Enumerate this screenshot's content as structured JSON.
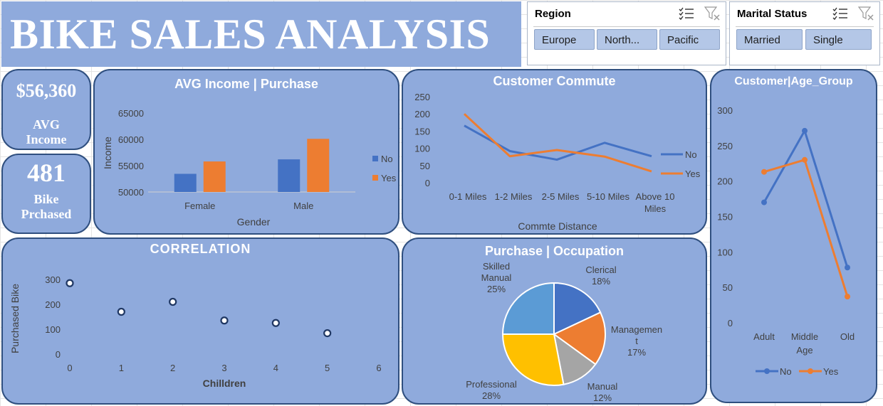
{
  "dashboard": {
    "title": "BIKE SALES ANALYSIS"
  },
  "slicers": {
    "region": {
      "label": "Region",
      "items": [
        "Europe",
        "North...",
        "Pacific"
      ]
    },
    "marital_status": {
      "label": "Marital Status",
      "items": [
        "Married",
        "Single"
      ]
    }
  },
  "kpis": {
    "avg_income": {
      "value": "$56,360",
      "label_line1": "AVG",
      "label_line2": "Income"
    },
    "bikes_purchased": {
      "value": "481",
      "label_line1": "Bike",
      "label_line2": "Prchased"
    }
  },
  "colors": {
    "panel": "#8faadc",
    "panel_border": "#2f4f7f",
    "no": "#4472c4",
    "yes": "#ed7d31"
  },
  "chart_data": [
    {
      "id": "avg_income",
      "type": "bar",
      "title": "AVG  Income | Purchase",
      "xlabel": "Gender",
      "ylabel": "Income",
      "categories": [
        "Female",
        "Male"
      ],
      "series": [
        {
          "name": "No",
          "color": "#4472c4",
          "values": [
            53450,
            56200
          ]
        },
        {
          "name": "Yes",
          "color": "#ed7d31",
          "values": [
            55800,
            60100
          ]
        }
      ],
      "ylim": [
        50000,
        65000
      ],
      "yticks": [
        50000,
        55000,
        60000,
        65000
      ],
      "ytick_labels": [
        "50000",
        "55000",
        "60000",
        "65000"
      ],
      "legend": "right"
    },
    {
      "id": "commute",
      "type": "line",
      "title": "Customer Commute",
      "xlabel": "Commte Distance",
      "categories": [
        "0-1 Miles",
        "1-2 Miles",
        "2-5 Miles",
        "5-10 Miles",
        "Above 10 Miles"
      ],
      "category_labels": [
        [
          "0-1 Miles"
        ],
        [
          "1-2 Miles"
        ],
        [
          "2-5 Miles"
        ],
        [
          "5-10 Miles"
        ],
        [
          "Above 10",
          "Miles"
        ]
      ],
      "series": [
        {
          "name": "No",
          "color": "#4472c4",
          "values": [
            166,
            92,
            67,
            116,
            77
          ]
        },
        {
          "name": "Yes",
          "color": "#ed7d31",
          "values": [
            200,
            77,
            95,
            76,
            33
          ]
        }
      ],
      "ylim": [
        0,
        250
      ],
      "yticks": [
        0,
        50,
        100,
        150,
        200,
        250
      ],
      "ytick_labels": [
        "0",
        "50",
        "100",
        "150",
        "200",
        "250"
      ],
      "legend": "right"
    },
    {
      "id": "age_group",
      "type": "line",
      "title": "Customer|Age_Group",
      "categories": [
        "Adult",
        "Middle Age",
        "Old"
      ],
      "category_labels": [
        [
          "Adult"
        ],
        [
          "Middle",
          "Age"
        ],
        [
          "Old"
        ]
      ],
      "series": [
        {
          "name": "No",
          "color": "#4472c4",
          "values": [
            170,
            271,
            78
          ]
        },
        {
          "name": "Yes",
          "color": "#ed7d31",
          "values": [
            213,
            230,
            37
          ]
        }
      ],
      "ylim": [
        0,
        300
      ],
      "yticks": [
        0,
        50,
        100,
        150,
        200,
        250,
        300
      ],
      "ytick_labels": [
        "0",
        "50",
        "100",
        "150",
        "200",
        "250",
        "300"
      ],
      "legend": "bottom",
      "markers": true
    },
    {
      "id": "correlation",
      "type": "scatter",
      "title": "CORRELATION",
      "xlabel": "Chilldren",
      "ylabel": "Purchased Bike",
      "points": [
        {
          "x": 0,
          "y": 285
        },
        {
          "x": 1,
          "y": 170
        },
        {
          "x": 2,
          "y": 210
        },
        {
          "x": 3,
          "y": 135
        },
        {
          "x": 4,
          "y": 125
        },
        {
          "x": 5,
          "y": 84
        }
      ],
      "xlim": [
        0,
        6
      ],
      "ylim": [
        0,
        300
      ],
      "xticks": [
        0,
        1,
        2,
        3,
        4,
        5,
        6
      ],
      "xtick_labels": [
        "0",
        "1",
        "2",
        "3",
        "4",
        "5",
        "6"
      ],
      "yticks": [
        0,
        100,
        200,
        300
      ],
      "ytick_labels": [
        "0",
        "100",
        "200",
        "300"
      ]
    },
    {
      "id": "occupation",
      "type": "pie",
      "title": "Purchase | Occupation",
      "slices": [
        {
          "name": "Clerical",
          "value": 18,
          "label": [
            "Clerical",
            "18%"
          ],
          "color": "#4472c4"
        },
        {
          "name": "Management",
          "value": 17,
          "label": [
            "Managemen",
            "t",
            "17%"
          ],
          "color": "#ed7d31"
        },
        {
          "name": "Manual",
          "value": 12,
          "label": [
            "Manual",
            "12%"
          ],
          "color": "#a5a5a5"
        },
        {
          "name": "Professional",
          "value": 28,
          "label": [
            "Professional",
            "28%"
          ],
          "color": "#ffc000"
        },
        {
          "name": "Skilled Manual",
          "value": 25,
          "label": [
            "Skilled",
            "Manual",
            "25%"
          ],
          "color": "#5b9bd5"
        }
      ]
    }
  ]
}
